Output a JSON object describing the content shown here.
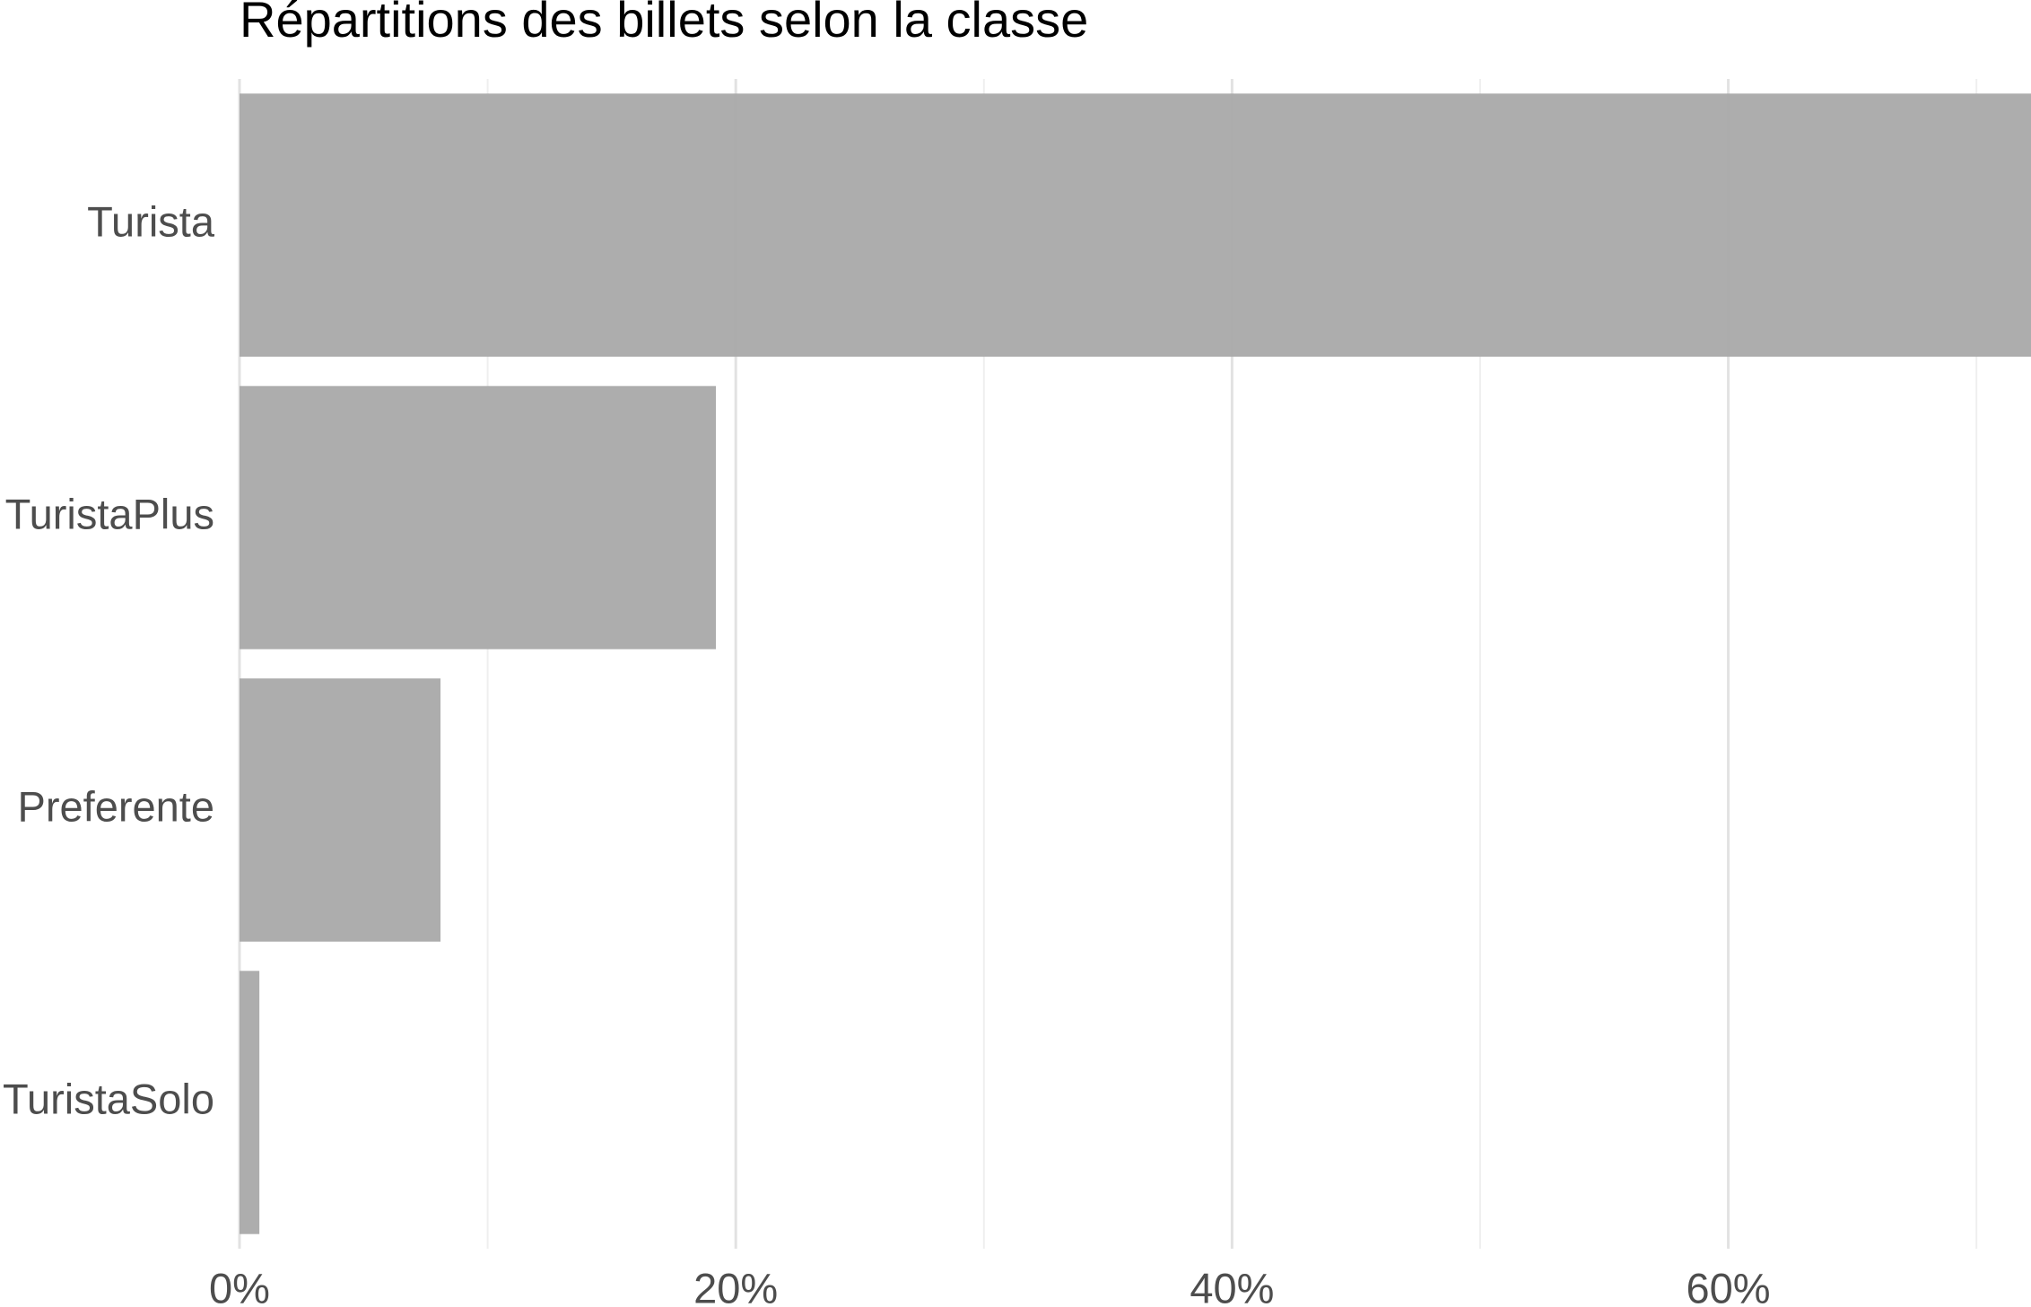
{
  "chart_data": {
    "type": "bar",
    "orientation": "horizontal",
    "title": "Répartitions des billets selon la classe",
    "xlabel": "",
    "ylabel": "",
    "categories": [
      "Turista",
      "TuristaPlus",
      "Preferente",
      "TuristaSolo"
    ],
    "values": [
      72.2,
      19.2,
      8.1,
      0.8
    ],
    "value_unit": "%",
    "xlim": [
      0,
      72.2
    ],
    "x_ticks": [
      0,
      20,
      40,
      60
    ],
    "x_tick_labels": [
      "0%",
      "20%",
      "40%",
      "60%"
    ],
    "grid": true,
    "legend": "none",
    "colors": {
      "bar": "#a9a9a9",
      "grid_major": "#e2e2e2",
      "grid_minor": "#efefef",
      "axis_text": "#4d4d4d",
      "title": "#000000"
    }
  }
}
